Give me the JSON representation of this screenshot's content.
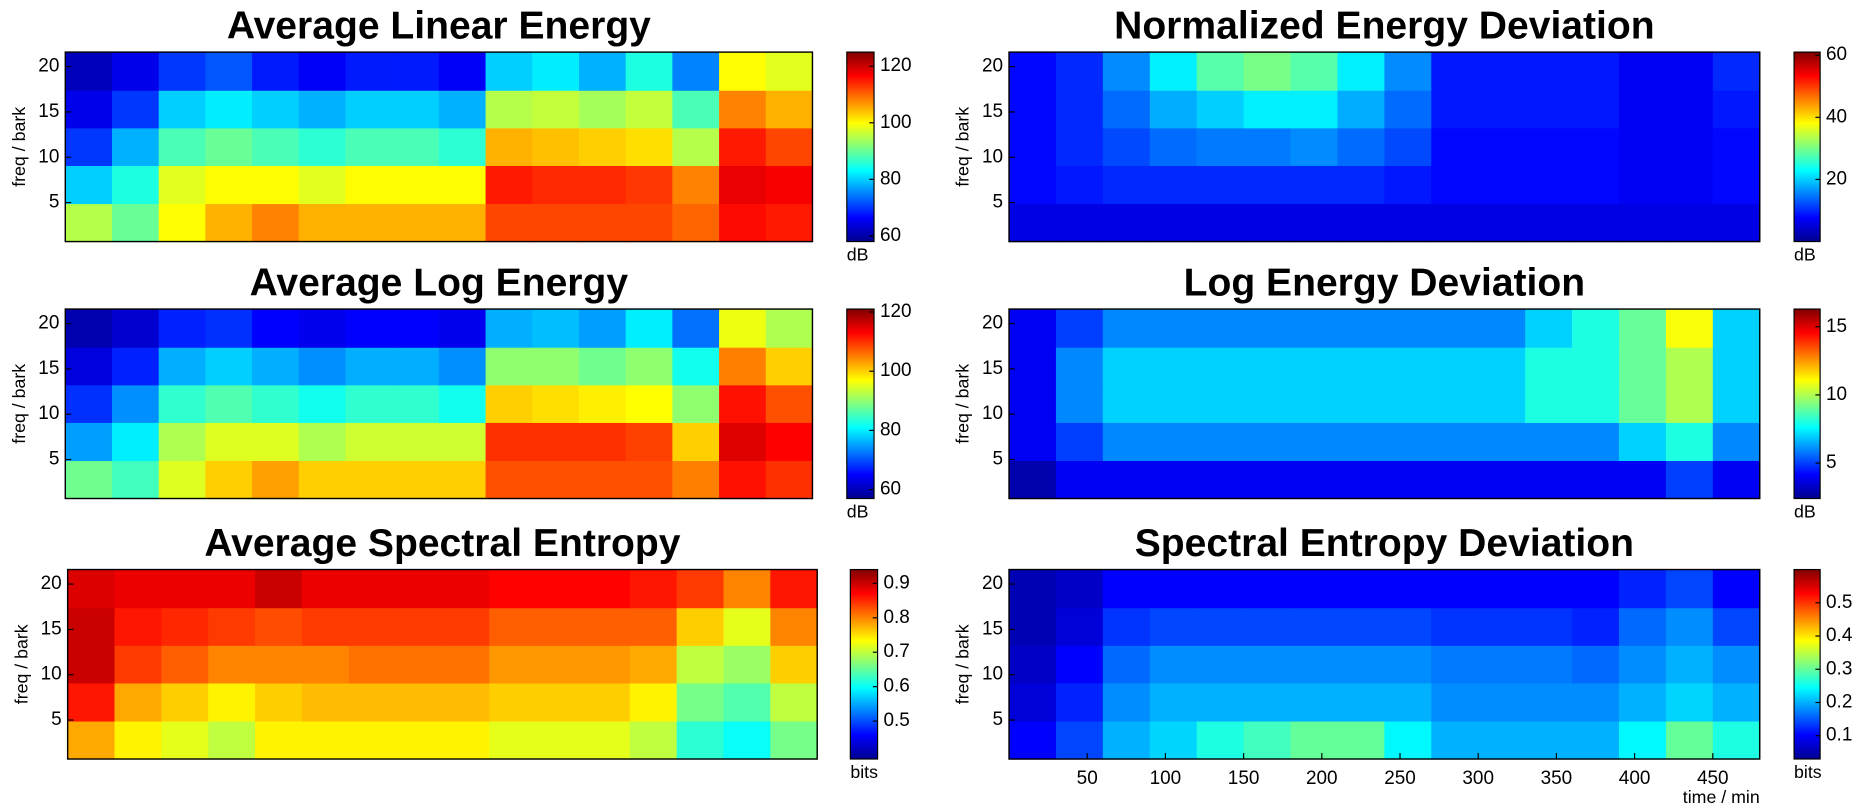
{
  "chart_data": [
    {
      "type": "heatmap",
      "title": "Average Linear Energy",
      "ylabel": "freq / bark",
      "cbar_label": "dB",
      "colormap": "jet",
      "x": [
        15,
        45,
        75,
        105,
        135,
        165,
        195,
        225,
        255,
        285,
        315,
        345,
        375,
        405,
        435,
        465
      ],
      "xlim": [
        0,
        480
      ],
      "y": [
        2.8,
        7,
        11.2,
        15.3,
        19.5
      ],
      "ylim": [
        0.7,
        21.6
      ],
      "yticks": [
        5,
        10,
        15,
        20
      ],
      "clim": [
        58,
        125
      ],
      "cticks": [
        60,
        80,
        100,
        120
      ],
      "z": [
        [
          95,
          90,
          100,
          105,
          108,
          105,
          105,
          105,
          105,
          112,
          112,
          112,
          112,
          110,
          116,
          115
        ],
        [
          80,
          85,
          98,
          100,
          100,
          98,
          100,
          100,
          100,
          115,
          114,
          114,
          113,
          108,
          118,
          117
        ],
        [
          70,
          78,
          88,
          90,
          88,
          86,
          88,
          88,
          86,
          105,
          104,
          103,
          102,
          95,
          115,
          112
        ],
        [
          65,
          70,
          80,
          82,
          80,
          78,
          80,
          80,
          78,
          95,
          96,
          94,
          96,
          88,
          108,
          105
        ],
        [
          62,
          65,
          70,
          72,
          68,
          66,
          68,
          68,
          66,
          80,
          82,
          78,
          85,
          75,
          100,
          98
        ]
      ]
    },
    {
      "type": "heatmap",
      "title": "Normalized Energy Deviation",
      "ylabel": "freq / bark",
      "cbar_label": "dB",
      "colormap": "jet",
      "x": [
        15,
        45,
        75,
        105,
        135,
        165,
        195,
        225,
        255,
        285,
        315,
        345,
        375,
        405,
        435,
        465
      ],
      "xlim": [
        0,
        480
      ],
      "y": [
        2.8,
        7,
        11.2,
        15.3,
        19.5
      ],
      "ylim": [
        0.7,
        21.6
      ],
      "yticks": [
        5,
        10,
        15,
        20
      ],
      "clim": [
        0,
        61
      ],
      "cticks": [
        20,
        40,
        60
      ],
      "z": [
        [
          6,
          6,
          6,
          6,
          6,
          6,
          6,
          6,
          6,
          6,
          6,
          6,
          6,
          6,
          6,
          6
        ],
        [
          8,
          9,
          10,
          10,
          10,
          10,
          10,
          10,
          9,
          8,
          8,
          8,
          8,
          7,
          7,
          8
        ],
        [
          8,
          10,
          12,
          14,
          15,
          15,
          16,
          14,
          12,
          8,
          8,
          8,
          8,
          7,
          7,
          8
        ],
        [
          8,
          10,
          14,
          18,
          20,
          22,
          22,
          18,
          14,
          9,
          9,
          9,
          9,
          7,
          7,
          9
        ],
        [
          8,
          10,
          16,
          22,
          28,
          30,
          28,
          22,
          16,
          9,
          9,
          9,
          9,
          7,
          7,
          10
        ]
      ]
    },
    {
      "type": "heatmap",
      "title": "Average Log Energy",
      "ylabel": "freq / bark",
      "cbar_label": "dB",
      "colormap": "jet",
      "x": [
        15,
        45,
        75,
        105,
        135,
        165,
        195,
        225,
        255,
        285,
        315,
        345,
        375,
        405,
        435,
        465
      ],
      "xlim": [
        0,
        480
      ],
      "y": [
        2.8,
        7,
        11.2,
        15.3,
        19.5
      ],
      "ylim": [
        0.7,
        21.6
      ],
      "yticks": [
        5,
        10,
        15,
        20
      ],
      "clim": [
        57,
        121
      ],
      "cticks": [
        60,
        80,
        100,
        120
      ],
      "z": [
        [
          88,
          85,
          95,
          100,
          103,
          100,
          100,
          100,
          100,
          108,
          108,
          108,
          108,
          105,
          112,
          110
        ],
        [
          75,
          80,
          92,
          95,
          95,
          92,
          94,
          94,
          94,
          110,
          110,
          110,
          109,
          100,
          115,
          113
        ],
        [
          68,
          74,
          84,
          86,
          84,
          82,
          84,
          84,
          82,
          100,
          99,
          98,
          97,
          90,
          112,
          108
        ],
        [
          63,
          67,
          76,
          78,
          76,
          74,
          76,
          76,
          74,
          90,
          90,
          88,
          90,
          82,
          105,
          100
        ],
        [
          60,
          62,
          67,
          68,
          65,
          64,
          65,
          65,
          64,
          76,
          77,
          75,
          80,
          72,
          96,
          92
        ]
      ]
    },
    {
      "type": "heatmap",
      "title": "Log Energy Deviation",
      "ylabel": "freq / bark",
      "cbar_label": "dB",
      "colormap": "jet",
      "x": [
        15,
        45,
        75,
        105,
        135,
        165,
        195,
        225,
        255,
        285,
        315,
        345,
        375,
        405,
        435,
        465
      ],
      "xlim": [
        0,
        480
      ],
      "y": [
        2.8,
        7,
        11.2,
        15.3,
        19.5
      ],
      "ylim": [
        0.7,
        21.6
      ],
      "yticks": [
        5,
        10,
        15,
        20
      ],
      "clim": [
        2.4,
        16.3
      ],
      "cticks": [
        5,
        10,
        15
      ],
      "z": [
        [
          3,
          4,
          4,
          4,
          4,
          4,
          4,
          4,
          4,
          4,
          4,
          4,
          4,
          4,
          5,
          4
        ],
        [
          4,
          5,
          6,
          6,
          6,
          6,
          6,
          6,
          6,
          6,
          6,
          6,
          6,
          7,
          8,
          6
        ],
        [
          4,
          6,
          7,
          7,
          7,
          7,
          7,
          7,
          7,
          7,
          7,
          8,
          8,
          9,
          10,
          7
        ],
        [
          4,
          6,
          7,
          7,
          7,
          7,
          7,
          7,
          7,
          7,
          7,
          8,
          8,
          9,
          10,
          7
        ],
        [
          4,
          5,
          6,
          6,
          6,
          6,
          6,
          6,
          6,
          6,
          6,
          7,
          8,
          9,
          11,
          7
        ]
      ]
    },
    {
      "type": "heatmap",
      "title": "Average Spectral Entropy",
      "ylabel": "freq / bark",
      "cbar_label": "bits",
      "colormap": "jet",
      "x": [
        15,
        45,
        75,
        105,
        135,
        165,
        195,
        225,
        255,
        285,
        315,
        345,
        375,
        405,
        435,
        465
      ],
      "xlim": [
        0,
        480
      ],
      "y": [
        2.8,
        7,
        11.2,
        15.3,
        19.5
      ],
      "ylim": [
        0.7,
        21.6
      ],
      "yticks": [
        5,
        10,
        15,
        20
      ],
      "clim": [
        0.39,
        0.94
      ],
      "cticks": [
        0.5,
        0.6,
        0.7,
        0.8,
        0.9
      ],
      "z": [
        [
          0.78,
          0.74,
          0.72,
          0.7,
          0.74,
          0.74,
          0.74,
          0.74,
          0.74,
          0.72,
          0.72,
          0.72,
          0.7,
          0.62,
          0.6,
          0.66
        ],
        [
          0.86,
          0.78,
          0.76,
          0.74,
          0.76,
          0.77,
          0.77,
          0.77,
          0.77,
          0.76,
          0.76,
          0.76,
          0.74,
          0.66,
          0.64,
          0.7
        ],
        [
          0.9,
          0.84,
          0.82,
          0.8,
          0.8,
          0.8,
          0.81,
          0.81,
          0.81,
          0.79,
          0.79,
          0.79,
          0.78,
          0.7,
          0.68,
          0.76
        ],
        [
          0.9,
          0.86,
          0.85,
          0.84,
          0.83,
          0.84,
          0.84,
          0.84,
          0.84,
          0.82,
          0.82,
          0.82,
          0.82,
          0.76,
          0.72,
          0.8
        ],
        [
          0.89,
          0.88,
          0.88,
          0.88,
          0.9,
          0.88,
          0.88,
          0.88,
          0.88,
          0.87,
          0.87,
          0.87,
          0.86,
          0.84,
          0.8,
          0.86
        ]
      ]
    },
    {
      "type": "heatmap",
      "title": "Spectral Entropy Deviation",
      "ylabel": "freq / bark",
      "xlabel": "time / min",
      "cbar_label": "bits",
      "colormap": "jet",
      "x": [
        15,
        45,
        75,
        105,
        135,
        165,
        195,
        225,
        255,
        285,
        315,
        345,
        375,
        405,
        435,
        465
      ],
      "xlim": [
        0,
        480
      ],
      "xticks": [
        50,
        100,
        150,
        200,
        250,
        300,
        350,
        400,
        450
      ],
      "y": [
        2.8,
        7,
        11.2,
        15.3,
        19.5
      ],
      "ylim": [
        0.7,
        21.6
      ],
      "yticks": [
        5,
        10,
        15,
        20
      ],
      "clim": [
        0.03,
        0.6
      ],
      "cticks": [
        0.1,
        0.2,
        0.3,
        0.4,
        0.5
      ],
      "z": [
        [
          0.1,
          0.14,
          0.2,
          0.22,
          0.26,
          0.28,
          0.3,
          0.3,
          0.24,
          0.2,
          0.2,
          0.2,
          0.2,
          0.24,
          0.3,
          0.26
        ],
        [
          0.08,
          0.12,
          0.18,
          0.2,
          0.2,
          0.2,
          0.2,
          0.2,
          0.2,
          0.18,
          0.18,
          0.18,
          0.18,
          0.2,
          0.22,
          0.2
        ],
        [
          0.07,
          0.1,
          0.16,
          0.18,
          0.18,
          0.18,
          0.18,
          0.18,
          0.18,
          0.17,
          0.17,
          0.17,
          0.16,
          0.18,
          0.2,
          0.18
        ],
        [
          0.06,
          0.08,
          0.13,
          0.14,
          0.14,
          0.14,
          0.14,
          0.14,
          0.14,
          0.13,
          0.13,
          0.13,
          0.12,
          0.16,
          0.18,
          0.14
        ],
        [
          0.06,
          0.07,
          0.1,
          0.1,
          0.1,
          0.1,
          0.1,
          0.1,
          0.1,
          0.1,
          0.1,
          0.1,
          0.1,
          0.12,
          0.14,
          0.1
        ]
      ]
    }
  ]
}
